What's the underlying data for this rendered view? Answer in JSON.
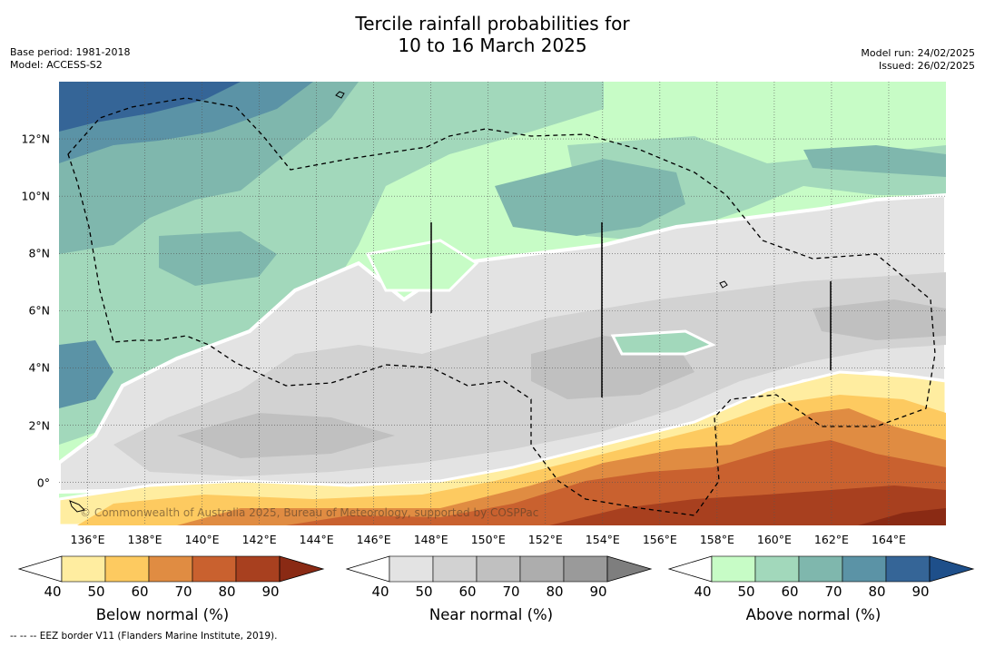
{
  "title": {
    "line1": "Tercile rainfall probabilities for",
    "line2": "10 to 16 March 2025"
  },
  "meta": {
    "base_period": "Base period: 1981-2018",
    "model": "Model: ACCESS-S2",
    "model_run": "Model run: 24/02/2025",
    "issued": "Issued: 26/02/2025"
  },
  "map": {
    "extent_lon": [
      135,
      166
    ],
    "extent_lat": [
      -1.5,
      14
    ],
    "x_ticks": [
      "136°E",
      "138°E",
      "140°E",
      "142°E",
      "144°E",
      "146°E",
      "148°E",
      "150°E",
      "152°E",
      "154°E",
      "156°E",
      "158°E",
      "160°E",
      "162°E",
      "164°E"
    ],
    "x_tick_lons": [
      136,
      138,
      140,
      142,
      144,
      146,
      148,
      150,
      152,
      154,
      156,
      158,
      160,
      162,
      164
    ],
    "y_ticks": [
      "12°N",
      "10°N",
      "8°N",
      "6°N",
      "4°N",
      "2°N",
      "0°"
    ],
    "y_tick_lats": [
      12,
      10,
      8,
      6,
      4,
      2,
      0
    ],
    "copyright": "© Commonwealth of Australia 2025, Bureau of Meteorology, supported by COSPPac"
  },
  "colorbars": [
    {
      "name": "below-normal",
      "title": "Below normal (%)",
      "ticks": [
        "40",
        "50",
        "60",
        "70",
        "80",
        "90"
      ],
      "colors": [
        "#ffffff",
        "#ffeda0",
        "#fdca60",
        "#e08c42",
        "#c9612f",
        "#a8401f",
        "#8a2a14"
      ]
    },
    {
      "name": "near-normal",
      "title": "Near normal (%)",
      "ticks": [
        "40",
        "50",
        "60",
        "70",
        "80",
        "90"
      ],
      "colors": [
        "#ffffff",
        "#e3e3e3",
        "#d2d2d2",
        "#c0c0c0",
        "#adadad",
        "#9a9a9a",
        "#7e7e7e"
      ]
    },
    {
      "name": "above-normal",
      "title": "Above normal (%)",
      "ticks": [
        "40",
        "50",
        "60",
        "70",
        "80",
        "90"
      ],
      "colors": [
        "#ffffff",
        "#c7fcc6",
        "#a2d8bb",
        "#7fb7ad",
        "#5b93a6",
        "#356597",
        "#1e4f8a"
      ]
    }
  ],
  "footnote": "--  --  -- EEZ border V11 (Flanders Marine Institute, 2019)."
}
